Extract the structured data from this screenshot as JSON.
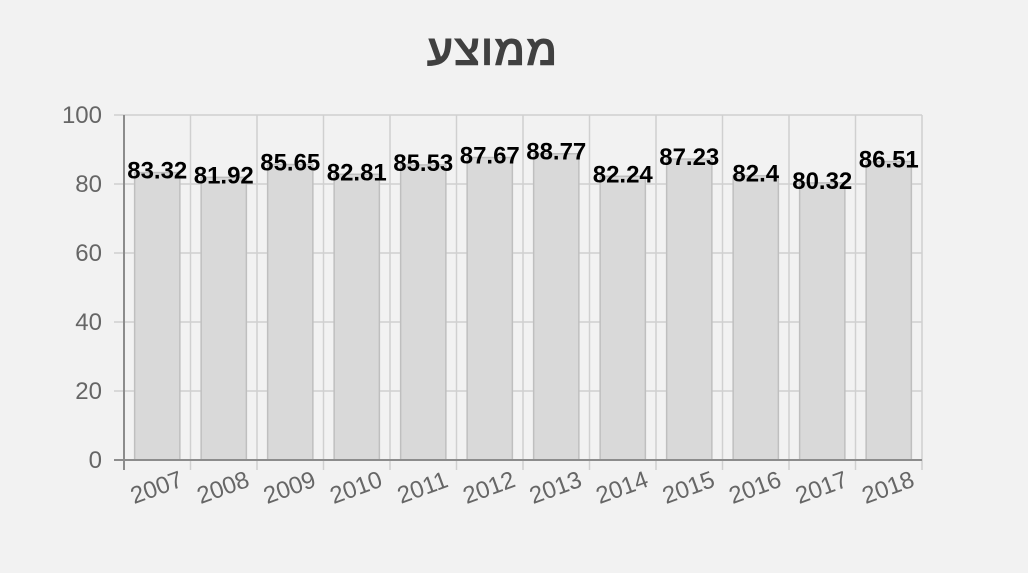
{
  "chart_data": {
    "type": "bar",
    "title": "ממוצע",
    "xlabel": "",
    "ylabel": "",
    "categories": [
      "2007",
      "2008",
      "2009",
      "2010",
      "2011",
      "2012",
      "2013",
      "2014",
      "2015",
      "2016",
      "2017",
      "2018"
    ],
    "values": [
      83.32,
      81.92,
      85.65,
      82.81,
      85.53,
      87.67,
      88.77,
      82.24,
      87.23,
      82.4,
      80.32,
      86.51
    ],
    "value_labels": [
      "83.32",
      "81.92",
      "85.65",
      "82.81",
      "85.53",
      "87.67",
      "88.77",
      "82.24",
      "87.23",
      "82.4",
      "80.32",
      "86.51"
    ],
    "ylim": [
      0,
      100
    ],
    "yticks": [
      "0",
      "20",
      "40",
      "60",
      "80",
      "100"
    ],
    "grid": true,
    "legend": "none",
    "colors": {
      "bar_fill": "#d9d9d9",
      "bar_stroke": "#bfbfbf",
      "grid": "#d0d0d0",
      "axis": "#8c8c8c",
      "background": "#f2f2f2"
    }
  }
}
